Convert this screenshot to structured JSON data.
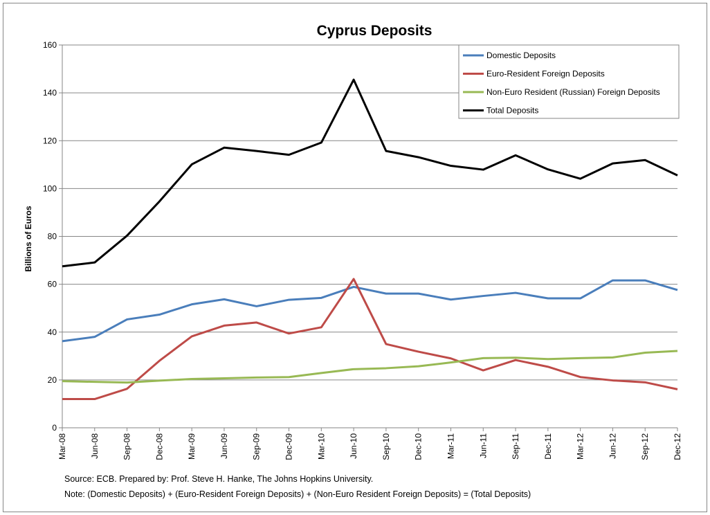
{
  "chart_data": {
    "type": "line",
    "title": "Cyprus Deposits",
    "xlabel": "",
    "ylabel": "Billions of Euros",
    "ylim": [
      0,
      160
    ],
    "yticks": [
      0,
      20,
      40,
      60,
      80,
      100,
      120,
      140,
      160
    ],
    "grid": true,
    "legend_position": "top-right",
    "categories": [
      "Mar-08",
      "Jun-08",
      "Sep-08",
      "Dec-08",
      "Mar-09",
      "Jun-09",
      "Sep-09",
      "Dec-09",
      "Mar-10",
      "Jun-10",
      "Sep-10",
      "Dec-10",
      "Mar-11",
      "Jun-11",
      "Sep-11",
      "Dec-11",
      "Mar-12",
      "Jun-12",
      "Sep-12",
      "Dec-12"
    ],
    "series": [
      {
        "name": "Domestic Deposits",
        "color": "#4a7ebb",
        "values": [
          36.2,
          38,
          45.3,
          47.3,
          51.6,
          53.7,
          50.8,
          53.5,
          54.3,
          58.9,
          56.1,
          56.1,
          53.6,
          55.1,
          56.4,
          54.1,
          54.1,
          61.6,
          61.6,
          57.6
        ]
      },
      {
        "name": "Euro-Resident Foreign Deposits",
        "color": "#be4b48",
        "values": [
          12,
          12,
          16.3,
          28,
          38.2,
          42.7,
          44,
          39.4,
          42,
          62.2,
          35,
          31.8,
          29,
          24,
          28.3,
          25.5,
          21.2,
          19.8,
          19,
          16.1
        ]
      },
      {
        "name": "Non-Euro Resident (Russian) Foreign Deposits",
        "color": "#98b954",
        "values": [
          19.5,
          19.2,
          18.9,
          19.7,
          20.4,
          20.7,
          21,
          21.2,
          22.9,
          24.5,
          24.9,
          25.7,
          27.3,
          29.1,
          29.3,
          28.7,
          29.1,
          29.4,
          31.4,
          32.1
        ]
      },
      {
        "name": "Total Deposits",
        "color": "#000000",
        "values": [
          67.5,
          69.1,
          80.3,
          94.6,
          110.1,
          117.1,
          115.7,
          114.1,
          119.2,
          145.5,
          115.7,
          113.1,
          109.5,
          107.9,
          113.9,
          108,
          104.1,
          110.5,
          111.9,
          105.5
        ]
      }
    ]
  },
  "footer": {
    "source": "Source: ECB. Prepared by: Prof. Steve H. Hanke, The Johns Hopkins University.",
    "note": "Note: (Domestic Deposits) + (Euro-Resident Foreign Deposits) + (Non-Euro Resident Foreign Deposits) = (Total Deposits)"
  }
}
